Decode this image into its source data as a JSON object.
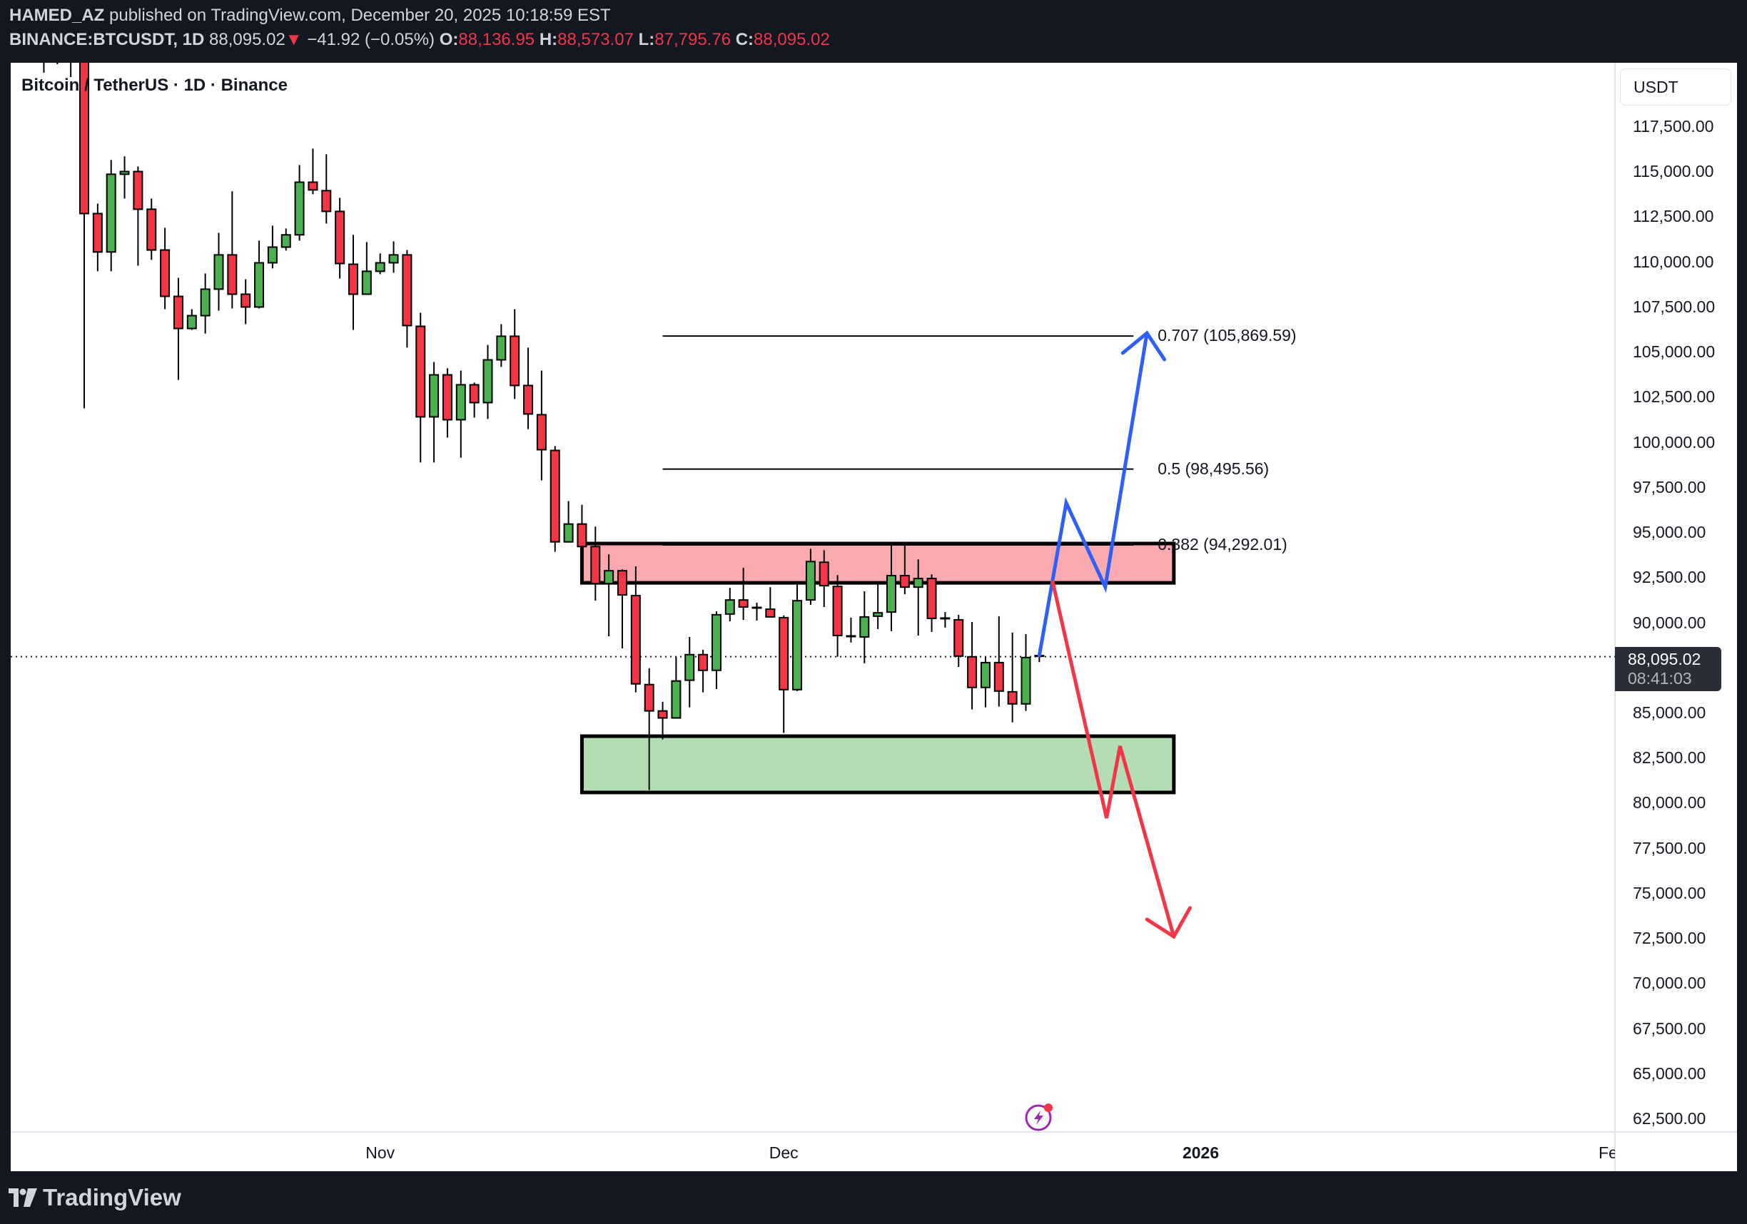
{
  "header": {
    "author": "HAMED_AZ",
    "published_text": "published on TradingView.com, December 20, 2025 10:18:59 EST",
    "symbol": "BINANCE:BTCUSDT, 1D",
    "last_price": "88,095.02",
    "change_arrow": "▼",
    "change": "−41.92 (−0.05%)",
    "o_label": "O:",
    "o_value": "88,136.95",
    "h_label": "H:",
    "h_value": "88,573.07",
    "l_label": "L:",
    "l_value": "87,795.76",
    "c_label": "C:",
    "c_value": "88,095.02"
  },
  "chart_title": "Bitcoin / TetherUS · 1D · Binance",
  "currency_button": "USDT",
  "price_tag": {
    "price": "88,095.02",
    "countdown": "08:41:03"
  },
  "footer": {
    "logo_text": "TradingView"
  },
  "colors": {
    "up": "#4caf50",
    "down": "#f23645",
    "background": "#131722",
    "resistance_zone": "#f9aab1",
    "support_zone": "#b4ddb5",
    "bull_path": "#2f5ff5",
    "bear_path": "#f23645"
  },
  "chart_data": {
    "type": "candlestick",
    "title": "Bitcoin / TetherUS · 1D · Binance",
    "symbol": "BINANCE:BTCUSDT",
    "interval": "1D",
    "ylabel": "USDT",
    "ylim": [
      62500,
      117500
    ],
    "y_ticks": [
      "117,500.00",
      "115,000.00",
      "112,500.00",
      "110,000.00",
      "107,500.00",
      "105,000.00",
      "102,500.00",
      "100,000.00",
      "97,500.00",
      "95,000.00",
      "92,500.00",
      "90,000.00",
      "87,500.00",
      "85,000.00",
      "82,500.00",
      "80,000.00",
      "77,500.00",
      "75,000.00",
      "72,500.00",
      "70,000.00",
      "67,500.00",
      "65,000.00",
      "62,500.00"
    ],
    "y_tick_values": [
      117500,
      115000,
      112500,
      110000,
      107500,
      105000,
      102500,
      100000,
      97500,
      95000,
      92500,
      90000,
      87500,
      85000,
      82500,
      80000,
      77500,
      75000,
      72500,
      70000,
      67500,
      65000,
      62500
    ],
    "x_ticks": [
      {
        "label": "Nov",
        "bar": 22,
        "bold": false
      },
      {
        "label": "Dec",
        "bar": 52,
        "bold": false
      },
      {
        "label": "2026",
        "bar": 83,
        "bold": true
      },
      {
        "label": "Fe",
        "bar": 113,
        "bold": false
      }
    ],
    "current_price": 88095.02,
    "candles_first_index": -3,
    "candles_ohlc": [
      [
        125000,
        126000,
        120470,
        125500
      ],
      [
        125500,
        126500,
        120940,
        125200
      ],
      [
        125200,
        126200,
        120230,
        124800
      ],
      [
        121560,
        122160,
        101860,
        112660
      ],
      [
        112660,
        113210,
        109460,
        110530
      ],
      [
        110530,
        115630,
        109460,
        114840
      ],
      [
        114840,
        115830,
        113490,
        114990
      ],
      [
        114990,
        115270,
        109770,
        112900
      ],
      [
        112900,
        113490,
        110090,
        110640
      ],
      [
        110640,
        111870,
        107360,
        108070
      ],
      [
        108070,
        109100,
        103440,
        106290
      ],
      [
        106290,
        107360,
        106210,
        107000
      ],
      [
        107000,
        109340,
        106010,
        108470
      ],
      [
        108470,
        111590,
        107280,
        110370
      ],
      [
        110370,
        113890,
        107400,
        108190
      ],
      [
        108190,
        109020,
        106530,
        107480
      ],
      [
        107480,
        111160,
        107400,
        109930
      ],
      [
        109930,
        111990,
        109620,
        110800
      ],
      [
        110800,
        111830,
        110610,
        111480
      ],
      [
        111480,
        115350,
        111160,
        114400
      ],
      [
        114400,
        116260,
        113730,
        113970
      ],
      [
        113930,
        115950,
        112110,
        112780
      ],
      [
        112780,
        113530,
        109060,
        109890
      ],
      [
        109850,
        111480,
        106210,
        108190
      ],
      [
        108190,
        111080,
        108190,
        109460
      ],
      [
        109460,
        110450,
        109300,
        109930
      ],
      [
        109930,
        111120,
        109380,
        110370
      ],
      [
        110370,
        110640,
        105230,
        106450
      ],
      [
        106410,
        107160,
        98860,
        101390
      ],
      [
        101390,
        104430,
        98860,
        103720
      ],
      [
        103720,
        104080,
        100240,
        101230
      ],
      [
        101230,
        103960,
        99130,
        103170
      ],
      [
        103170,
        103290,
        101350,
        102180
      ],
      [
        102180,
        105380,
        101270,
        104550
      ],
      [
        104550,
        106530,
        104160,
        105860
      ],
      [
        105860,
        107360,
        102380,
        103130
      ],
      [
        103130,
        105230,
        100710,
        101550
      ],
      [
        101510,
        103960,
        97870,
        99570
      ],
      [
        99530,
        99770,
        93910,
        94460
      ],
      [
        94460,
        96720,
        94460,
        95450
      ],
      [
        95450,
        96520,
        94150,
        94200
      ],
      [
        94200,
        95310,
        91200,
        92150
      ],
      [
        92150,
        93770,
        89230,
        92860
      ],
      [
        92860,
        92940,
        88560,
        91520
      ],
      [
        91480,
        93100,
        86120,
        86590
      ],
      [
        86550,
        87460,
        80710,
        85090
      ],
      [
        85090,
        85600,
        83510,
        84700
      ],
      [
        84700,
        88090,
        84700,
        86750
      ],
      [
        86790,
        89190,
        85290,
        88210
      ],
      [
        88210,
        88480,
        86120,
        87340
      ],
      [
        87340,
        90610,
        86310,
        90420
      ],
      [
        90460,
        91910,
        90060,
        91240
      ],
      [
        91240,
        93020,
        90140,
        90850
      ],
      [
        90810,
        91090,
        90100,
        90810
      ],
      [
        90730,
        91950,
        90300,
        90300
      ],
      [
        90260,
        90380,
        83870,
        86270
      ],
      [
        86270,
        92190,
        86190,
        91200
      ],
      [
        91240,
        94080,
        90970,
        93370
      ],
      [
        93330,
        94000,
        90850,
        92030
      ],
      [
        91990,
        92620,
        88090,
        89270
      ],
      [
        89230,
        90260,
        88880,
        89230
      ],
      [
        89190,
        91720,
        87730,
        90300
      ],
      [
        90340,
        92190,
        89630,
        90530
      ],
      [
        90570,
        94400,
        89510,
        92590
      ],
      [
        92590,
        94400,
        91560,
        91950
      ],
      [
        91950,
        93490,
        89270,
        92430
      ],
      [
        92430,
        92660,
        89470,
        90220
      ],
      [
        90220,
        90570,
        89710,
        90220
      ],
      [
        90140,
        90420,
        87530,
        88130
      ],
      [
        88090,
        90020,
        85170,
        86390
      ],
      [
        86390,
        88090,
        85290,
        87770
      ],
      [
        87770,
        90340,
        85330,
        86190
      ],
      [
        86150,
        89430,
        84460,
        85480
      ],
      [
        85480,
        89350,
        85090,
        88050
      ],
      [
        88136.95,
        88573.07,
        87795.76,
        88095.02
      ]
    ],
    "zones": [
      {
        "name": "resistance-zone",
        "bar_start": 37,
        "bar_end": 81,
        "price_top": 94370,
        "price_bottom": 92190,
        "fill": "#f9aab1"
      },
      {
        "name": "support-zone",
        "bar_start": 37,
        "bar_end": 81,
        "price_top": 83690,
        "price_bottom": 80570,
        "fill": "#b4ddb5"
      }
    ],
    "fib_levels": [
      {
        "level": "0.707",
        "price": 105869.59,
        "label": "0.707 (105,869.59)"
      },
      {
        "level": "0.5",
        "price": 98495.56,
        "label": "0.5 (98,495.56)"
      },
      {
        "level": "0.382",
        "price": 94292.01,
        "label": "0.382 (94,292.01)"
      }
    ],
    "fib_bar_start": 43,
    "fib_bar_end": 78,
    "fib_label_bar": 79.8,
    "paths": [
      {
        "name": "bullish-scenario-arrow",
        "color": "#2f5ff5",
        "points": [
          [
            71.0,
            88160
          ],
          [
            73.0,
            96620
          ],
          [
            75.9,
            91960
          ],
          [
            79.0,
            106030
          ]
        ],
        "head": [
          [
            77.2,
            104930
          ],
          [
            79.0,
            106030
          ],
          [
            80.3,
            104570
          ]
        ]
      },
      {
        "name": "bearish-scenario-arrow",
        "color": "#f23645",
        "points": [
          [
            72.0,
            92230
          ],
          [
            76.0,
            79150
          ],
          [
            77.0,
            83140
          ],
          [
            81.0,
            72580
          ]
        ],
        "head": [
          [
            79.0,
            73530
          ],
          [
            81.0,
            72580
          ],
          [
            82.2,
            74170
          ]
        ]
      }
    ]
  }
}
